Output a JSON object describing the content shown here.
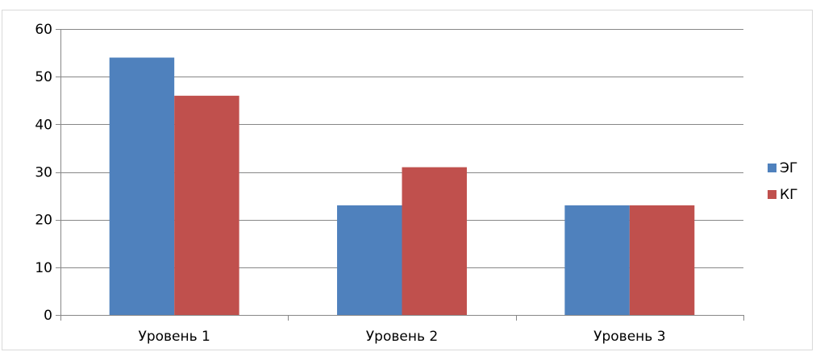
{
  "chart_data": {
    "type": "bar",
    "categories": [
      "Уровень 1",
      "Уровень 2",
      "Уровень 3"
    ],
    "series": [
      {
        "name": "ЭГ",
        "values": [
          54,
          23,
          23
        ],
        "color": "#4f81bd"
      },
      {
        "name": "КГ",
        "values": [
          46,
          31,
          23
        ],
        "color": "#c0504d"
      }
    ],
    "title": "",
    "xlabel": "",
    "ylabel": "",
    "ylim": [
      0,
      60
    ],
    "yticks": [
      0,
      10,
      20,
      30,
      40,
      50,
      60
    ],
    "grid": true,
    "legend": "right"
  }
}
